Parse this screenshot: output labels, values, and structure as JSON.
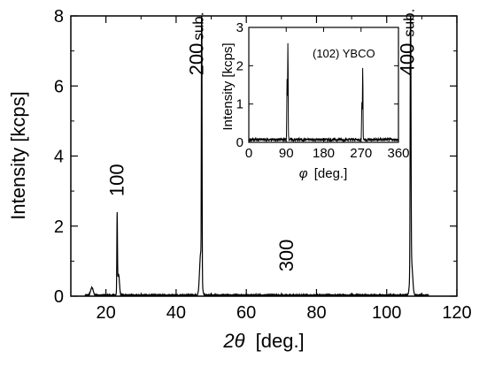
{
  "chart_data": [
    {
      "type": "line",
      "xlabel_symbol": "2θ",
      "xlabel_unit": "[deg.]",
      "ylabel": "Intensity [kcps]",
      "xlim": [
        10,
        120
      ],
      "ylim": [
        0,
        8
      ],
      "x_ticks": [
        20,
        40,
        60,
        80,
        100,
        120
      ],
      "y_ticks": [
        0,
        2,
        4,
        6,
        8
      ],
      "grid": false,
      "peaks": [
        {
          "x": 16.0,
          "y": 0.22,
          "width": 0.5
        },
        {
          "x": 23.2,
          "y": 2.2,
          "width": 0.12
        },
        {
          "x": 23.6,
          "y": 0.6,
          "width": 0.35
        },
        {
          "x": 47.3,
          "y": 8.5,
          "width": 0.12
        },
        {
          "x": 47.0,
          "y": 1.2,
          "width": 0.45
        },
        {
          "x": 106.8,
          "y": 8.5,
          "width": 0.15
        },
        {
          "x": 107.0,
          "y": 1.0,
          "width": 0.5
        }
      ],
      "annotations": [
        {
          "text": "100",
          "x": 23.2,
          "y": 2.85
        },
        {
          "text": "200",
          "x": 46.0,
          "y": 6.3
        },
        {
          "text": "sub.",
          "x": 46.0,
          "y": 7.3
        },
        {
          "text": "300",
          "x": 71.5,
          "y": 0.7
        },
        {
          "text": "400",
          "x": 106.0,
          "y": 6.3
        },
        {
          "text": "sub.",
          "x": 106.0,
          "y": 7.4
        }
      ]
    },
    {
      "type": "line",
      "title": "(102) YBCO",
      "xlabel_symbol": "φ",
      "xlabel_unit": "[deg.]",
      "ylabel": "Intensity [kcps]",
      "xlim": [
        0,
        360
      ],
      "ylim": [
        0,
        3
      ],
      "x_ticks": [
        0,
        90,
        180,
        270,
        360
      ],
      "y_ticks": [
        0,
        1,
        2,
        3
      ],
      "grid": false,
      "peaks": [
        {
          "x": 94,
          "y": 2.5
        },
        {
          "x": 92,
          "y": 1.55
        },
        {
          "x": 274,
          "y": 1.85
        },
        {
          "x": 272,
          "y": 1.0
        }
      ],
      "baseline": 0.07
    }
  ]
}
